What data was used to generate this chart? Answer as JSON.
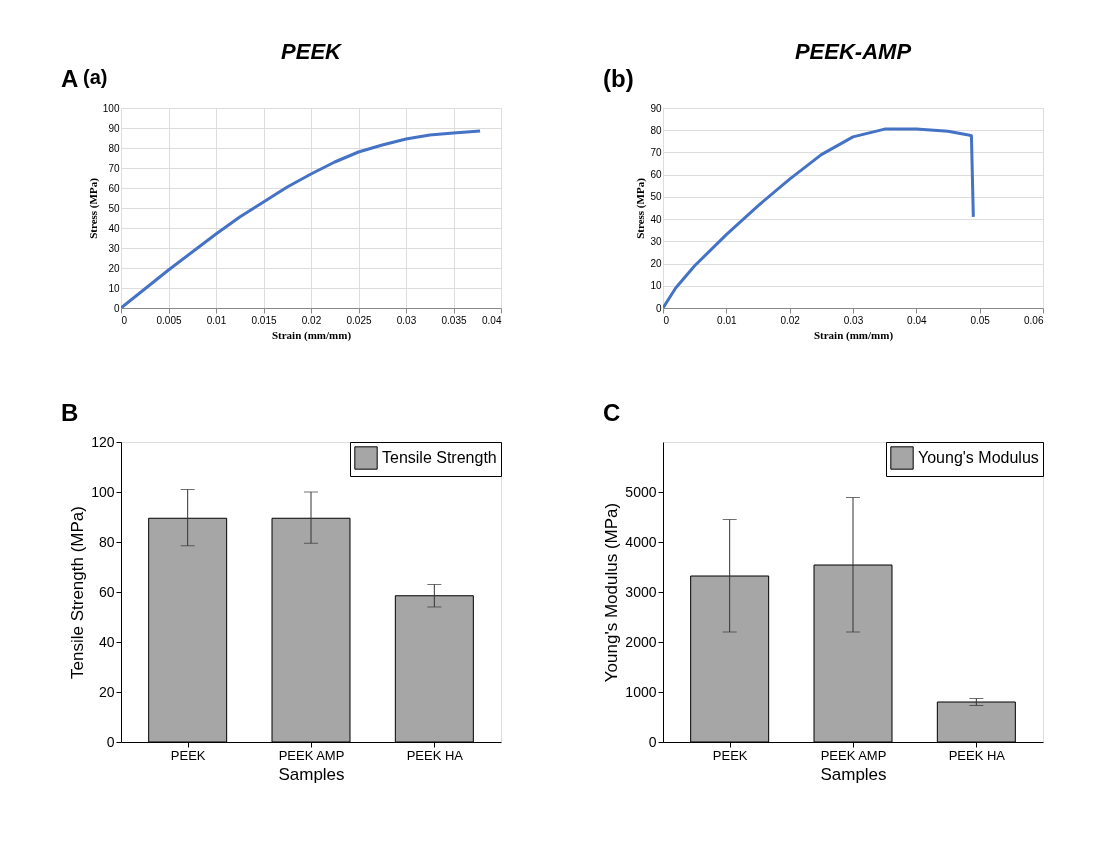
{
  "chart_data": [
    {
      "type": "line",
      "title": "PEEK",
      "xlabel": "Strain (mm/mm)",
      "ylabel": "Stress (MPa)",
      "annotations": [
        "A",
        "(a)"
      ],
      "xlim": [
        0,
        0.04
      ],
      "xticks": [
        0,
        0.005,
        0.01,
        0.015,
        0.02,
        0.025,
        0.03,
        0.035,
        0.04
      ],
      "ylim": [
        0,
        100
      ],
      "yticks": [
        0,
        10,
        20,
        30,
        40,
        50,
        60,
        70,
        80,
        90,
        100
      ],
      "grid": true,
      "marker": "none",
      "line_style": "solid",
      "series": [
        {
          "color": "#4472c4",
          "x": [
            0,
            0.0025,
            0.005,
            0.0075,
            0.01,
            0.0125,
            0.015,
            0.0175,
            0.02,
            0.0225,
            0.025,
            0.0275,
            0.03,
            0.0325,
            0.035,
            0.0378
          ],
          "values": [
            0,
            9.5,
            19,
            28,
            37,
            45.5,
            53,
            60.5,
            67,
            73,
            78,
            81.5,
            84.5,
            86.5,
            87.5,
            88.5
          ]
        }
      ]
    },
    {
      "type": "line",
      "title": "PEEK-AMP",
      "xlabel": "Strain (mm/mm)",
      "ylabel": "Stress (MPa)",
      "annotations": [
        "(b)"
      ],
      "xlim": [
        0,
        0.06
      ],
      "xticks": [
        0,
        0.01,
        0.02,
        0.03,
        0.04,
        0.05,
        0.06
      ],
      "ylim": [
        0,
        90
      ],
      "yticks": [
        0,
        10,
        20,
        30,
        40,
        50,
        60,
        70,
        80,
        90
      ],
      "grid": "y",
      "marker": "none",
      "line_style": "solid",
      "series": [
        {
          "color": "#4472c4",
          "x": [
            0,
            0.002,
            0.005,
            0.01,
            0.015,
            0.02,
            0.025,
            0.03,
            0.035,
            0.04,
            0.045,
            0.048,
            0.0487,
            0.049
          ],
          "values": [
            0,
            9,
            19,
            33,
            46,
            58,
            69,
            77,
            80.5,
            80.5,
            79.5,
            78,
            77.5,
            41
          ]
        }
      ]
    },
    {
      "type": "bar",
      "xlabel": "Samples",
      "ylabel": "Tensile Strength (MPa)",
      "annotations": [
        "B"
      ],
      "legend": "top right",
      "categories": [
        "PEEK",
        "PEEK AMP",
        "PEEK HA"
      ],
      "ylim": [
        0,
        120
      ],
      "yticks": [
        0,
        20,
        40,
        60,
        80,
        100,
        120
      ],
      "series": [
        {
          "name": "Tensile Strength",
          "color": "#a6a6a6",
          "values": [
            89.5,
            89.5,
            58.5
          ],
          "errors": [
            [
              78.5,
              101
            ],
            [
              79.5,
              100
            ],
            [
              54,
              63
            ]
          ]
        }
      ]
    },
    {
      "type": "bar",
      "xlabel": "Samples",
      "ylabel": "Young's Modulus (MPa)",
      "annotations": [
        "C"
      ],
      "legend": "top right",
      "categories": [
        "PEEK",
        "PEEK AMP",
        "PEEK HA"
      ],
      "ylim": [
        0,
        6000
      ],
      "yticks": [
        0,
        1000,
        2000,
        3000,
        4000,
        5000
      ],
      "series": [
        {
          "name": "Young's Modulus",
          "color": "#a6a6a6",
          "values": [
            3320,
            3540,
            800
          ],
          "errors": [
            [
              2200,
              4450
            ],
            [
              2200,
              4890
            ],
            [
              730,
              870
            ]
          ]
        }
      ]
    }
  ]
}
